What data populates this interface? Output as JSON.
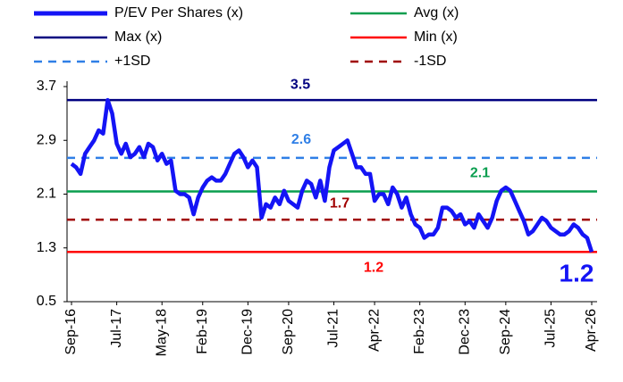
{
  "chart_data": {
    "type": "line",
    "categories": [
      "Sep-16",
      null,
      null,
      null,
      null,
      null,
      null,
      null,
      null,
      null,
      "Jul-17",
      null,
      null,
      null,
      null,
      null,
      null,
      null,
      null,
      null,
      "May-18",
      null,
      null,
      null,
      null,
      null,
      null,
      null,
      null,
      "Feb-19",
      null,
      null,
      null,
      null,
      null,
      null,
      null,
      null,
      null,
      "Dec-19",
      null,
      null,
      null,
      null,
      null,
      null,
      null,
      null,
      "Sep-20",
      null,
      null,
      null,
      null,
      null,
      null,
      null,
      null,
      null,
      "Jul-21",
      null,
      null,
      null,
      null,
      null,
      null,
      null,
      null,
      "Apr-22",
      null,
      null,
      null,
      null,
      null,
      null,
      null,
      null,
      null,
      "Feb-23",
      null,
      null,
      null,
      null,
      null,
      null,
      null,
      null,
      null,
      "Dec-23",
      null,
      null,
      null,
      null,
      null,
      null,
      null,
      null,
      "Sep-24",
      null,
      null,
      null,
      null,
      null,
      null,
      null,
      null,
      null,
      "Jul-25",
      null,
      null,
      null,
      null,
      null,
      null,
      null,
      null,
      "Apr-26"
    ],
    "series": [
      {
        "name": "P/EV Per Shares (x)",
        "color": "#1414f5",
        "end_label": "1.2",
        "values": [
          2.55,
          2.5,
          2.4,
          2.7,
          2.8,
          2.9,
          3.05,
          3.0,
          3.5,
          3.3,
          2.85,
          2.7,
          2.85,
          2.65,
          2.7,
          2.8,
          2.65,
          2.85,
          2.8,
          2.6,
          2.7,
          2.55,
          2.6,
          2.15,
          2.1,
          2.1,
          2.05,
          1.8,
          2.05,
          2.2,
          2.3,
          2.35,
          2.3,
          2.3,
          2.4,
          2.55,
          2.7,
          2.75,
          2.65,
          2.5,
          2.6,
          2.5,
          1.75,
          1.95,
          1.9,
          2.05,
          1.95,
          2.15,
          2.0,
          1.95,
          1.9,
          2.15,
          2.3,
          2.25,
          2.05,
          2.3,
          2.0,
          2.5,
          2.75,
          2.8,
          2.85,
          2.9,
          2.7,
          2.5,
          2.5,
          2.4,
          2.4,
          2.0,
          2.1,
          2.1,
          1.95,
          2.2,
          2.1,
          1.9,
          2.05,
          1.8,
          1.65,
          1.6,
          1.45,
          1.5,
          1.5,
          1.6,
          1.9,
          1.9,
          1.85,
          1.75,
          1.8,
          1.65,
          1.7,
          1.6,
          1.8,
          1.7,
          1.6,
          1.75,
          2.0,
          2.15,
          2.2,
          2.15,
          2.0,
          1.85,
          1.7,
          1.5,
          1.55,
          1.65,
          1.75,
          1.7,
          1.6,
          1.55,
          1.5,
          1.5,
          1.55,
          1.65,
          1.6,
          1.5,
          1.45,
          1.24
        ]
      }
    ],
    "reference_lines": [
      {
        "name": "Avg (x)",
        "color": "#0a9e4f",
        "value": 2.14,
        "value_label": "2.1",
        "dashed": false
      },
      {
        "name": "Max (x)",
        "color": "#000080",
        "value": 3.5,
        "value_label": "3.5",
        "dashed": false
      },
      {
        "name": "Min (x)",
        "color": "#ff0000",
        "value": 1.24,
        "value_label": "1.2",
        "dashed": false
      },
      {
        "name": "+1SD",
        "color": "#2f7fe6",
        "value": 2.64,
        "value_label": "2.6",
        "dashed": true
      },
      {
        "name": "-1SD",
        "color": "#a00000",
        "value": 1.72,
        "value_label": "1.7",
        "dashed": true
      }
    ],
    "ylim": [
      0.5,
      3.7
    ],
    "yticks": [
      0.5,
      1.3,
      2.1,
      2.9,
      3.7
    ]
  }
}
